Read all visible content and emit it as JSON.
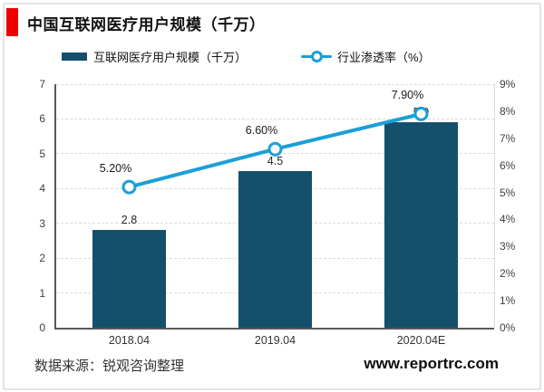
{
  "header": {
    "title": "中国互联网医疗用户规模（千万）"
  },
  "legend": [
    {
      "label": "互联网医疗用户规模（千万）",
      "type": "bar"
    },
    {
      "label": "行业渗透率（%）",
      "type": "line"
    }
  ],
  "footer": {
    "source": "数据来源：锐观咨询整理",
    "website": "www.reportrc.com"
  },
  "colors": {
    "bar": "#14506c",
    "line": "#1b9fd8",
    "accent_red": "#ee0000",
    "grid": "#dcdcdc",
    "axis": "#595959"
  },
  "chart_data": {
    "type": "bar",
    "subtype": "bar-line-combo",
    "title": "中国互联网医疗用户规模（千万）",
    "categories": [
      "2018.04",
      "2019.04",
      "2020.04E"
    ],
    "series": [
      {
        "name": "互联网医疗用户规模（千万）",
        "type": "bar",
        "axis": "left",
        "values": [
          2.8,
          4.5,
          5.9
        ],
        "labels": [
          "2.8",
          "4.5",
          "5.9"
        ]
      },
      {
        "name": "行业渗透率（%）",
        "type": "line",
        "axis": "right",
        "values": [
          5.2,
          6.6,
          7.9
        ],
        "labels": [
          "5.20%",
          "6.60%",
          "7.90%"
        ]
      }
    ],
    "left_axis": {
      "min": 0,
      "max": 7,
      "step": 1,
      "ticks": [
        "0",
        "1",
        "2",
        "3",
        "4",
        "5",
        "6",
        "7"
      ]
    },
    "right_axis": {
      "min": 0,
      "max": 9,
      "step": 1,
      "ticks": [
        "0%",
        "1%",
        "2%",
        "3%",
        "4%",
        "5%",
        "6%",
        "7%",
        "8%",
        "9%"
      ]
    },
    "grid": "horizontal-dashed",
    "legend_position": "top"
  }
}
